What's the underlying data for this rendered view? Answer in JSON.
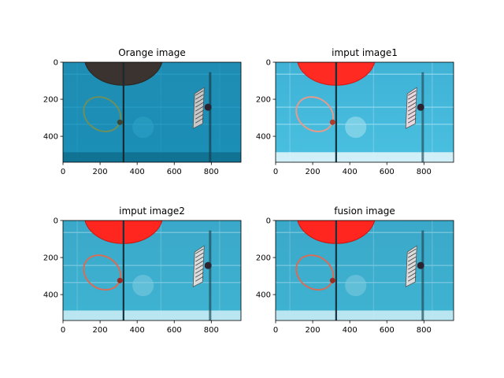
{
  "figure": {
    "background": "#ffffff",
    "panels": [
      {
        "id": "orange",
        "title": "Orange image",
        "tint": "dark",
        "xticks": [
          0,
          200,
          400,
          600,
          800
        ],
        "yticks": [
          0,
          200,
          400
        ],
        "xlim": [
          0,
          960
        ],
        "ylim": [
          540,
          0
        ]
      },
      {
        "id": "input1",
        "title": "imput image1",
        "tint": "light",
        "xticks": [
          0,
          200,
          400,
          600,
          800
        ],
        "yticks": [
          0,
          200,
          400
        ],
        "xlim": [
          0,
          960
        ],
        "ylim": [
          540,
          0
        ]
      },
      {
        "id": "input2",
        "title": "imput image2",
        "tint": "medium",
        "xticks": [
          0,
          200,
          400,
          600,
          800
        ],
        "yticks": [
          0,
          200,
          400
        ],
        "xlim": [
          0,
          960
        ],
        "ylim": [
          540,
          0
        ]
      },
      {
        "id": "fusion",
        "title": "fusion image",
        "tint": "medium",
        "xticks": [
          0,
          200,
          400,
          600,
          800
        ],
        "yticks": [
          0,
          200,
          400
        ],
        "xlim": [
          0,
          960
        ],
        "ylim": [
          540,
          0
        ]
      }
    ]
  },
  "chart_data": [
    {
      "type": "other",
      "title": "Orange image",
      "image_width": 960,
      "image_height": 540,
      "xlim": [
        0,
        960
      ],
      "ylim": [
        540,
        0
      ],
      "xticks": [
        0,
        200,
        400,
        600,
        800
      ],
      "yticks": [
        0,
        200,
        400
      ]
    },
    {
      "type": "other",
      "title": "imput image1",
      "image_width": 960,
      "image_height": 540,
      "xlim": [
        0,
        960
      ],
      "ylim": [
        540,
        0
      ],
      "xticks": [
        0,
        200,
        400,
        600,
        800
      ],
      "yticks": [
        0,
        200,
        400
      ]
    },
    {
      "type": "other",
      "title": "imput image2",
      "image_width": 960,
      "image_height": 540,
      "xlim": [
        0,
        960
      ],
      "ylim": [
        540,
        0
      ],
      "xticks": [
        0,
        200,
        400,
        600,
        800
      ],
      "yticks": [
        0,
        200,
        400
      ]
    },
    {
      "type": "other",
      "title": "fusion image",
      "image_width": 960,
      "image_height": 540,
      "xlim": [
        0,
        960
      ],
      "ylim": [
        540,
        0
      ],
      "xticks": [
        0,
        200,
        400,
        600,
        800
      ],
      "yticks": [
        0,
        200,
        400
      ]
    }
  ]
}
